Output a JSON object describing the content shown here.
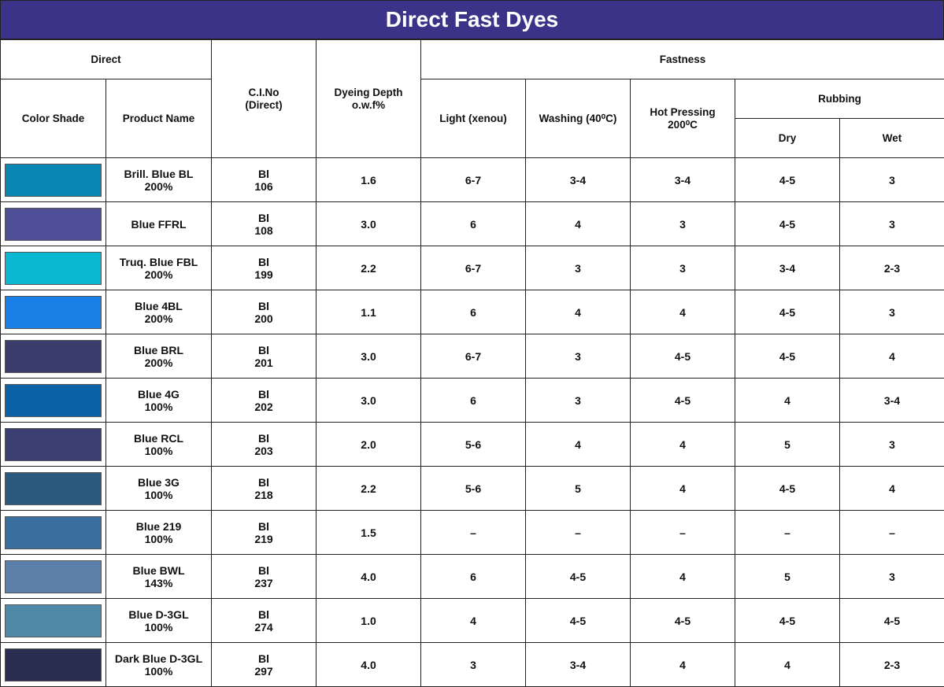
{
  "title": "Direct Fast Dyes",
  "header": {
    "direct": "Direct",
    "color_shade": "Color Shade",
    "product_name": "Product Name",
    "ci_no": "C.I.No\n(Direct)",
    "dyeing_depth": "Dyeing Depth\no.w.f%",
    "fastness": "Fastness",
    "light": "Light (xenou)",
    "washing": "Washing (40⁰C)",
    "hot_pressing": "Hot Pressing\n200⁰C",
    "rubbing": "Rubbing",
    "dry": "Dry",
    "wet": "Wet"
  },
  "rows": [
    {
      "swatch": "#0a86b3",
      "product": "Brill. Blue BL\n200%",
      "ci": "Bl\n106",
      "depth": "1.6",
      "light": "6-7",
      "washing": "3-4",
      "hot": "3-4",
      "dry": "4-5",
      "wet": "3"
    },
    {
      "swatch": "#4e4f97",
      "product": "Blue FFRL",
      "ci": "Bl\n108",
      "depth": "3.0",
      "light": "6",
      "washing": "4",
      "hot": "3",
      "dry": "4-5",
      "wet": "3"
    },
    {
      "swatch": "#0ab8d2",
      "product": "Truq. Blue FBL\n200%",
      "ci": "Bl\n199",
      "depth": "2.2",
      "light": "6-7",
      "washing": "3",
      "hot": "3",
      "dry": "3-4",
      "wet": "2-3"
    },
    {
      "swatch": "#1a7fe6",
      "product": "Blue 4BL\n200%",
      "ci": "Bl\n200",
      "depth": "1.1",
      "light": "6",
      "washing": "4",
      "hot": "4",
      "dry": "4-5",
      "wet": "3"
    },
    {
      "swatch": "#3a3c6c",
      "product": "Blue BRL\n200%",
      "ci": "Bl\n201",
      "depth": "3.0",
      "light": "6-7",
      "washing": "3",
      "hot": "4-5",
      "dry": "4-5",
      "wet": "4"
    },
    {
      "swatch": "#0b62a6",
      "product": "Blue 4G\n100%",
      "ci": "Bl\n202",
      "depth": "3.0",
      "light": "6",
      "washing": "3",
      "hot": "4-5",
      "dry": "4",
      "wet": "3-4"
    },
    {
      "swatch": "#3c3f72",
      "product": "Blue RCL\n100%",
      "ci": "Bl\n203",
      "depth": "2.0",
      "light": "5-6",
      "washing": "4",
      "hot": "4",
      "dry": "5",
      "wet": "3"
    },
    {
      "swatch": "#2b5a7e",
      "product": "Blue 3G\n100%",
      "ci": "Bl\n218",
      "depth": "2.2",
      "light": "5-6",
      "washing": "5",
      "hot": "4",
      "dry": "4-5",
      "wet": "4"
    },
    {
      "swatch": "#3a6fa0",
      "product": "Blue 219\n100%",
      "ci": "Bl\n219",
      "depth": "1.5",
      "light": "–",
      "washing": "–",
      "hot": "–",
      "dry": "–",
      "wet": "–"
    },
    {
      "swatch": "#5b7fa8",
      "product": "Blue BWL\n143%",
      "ci": "Bl\n237",
      "depth": "4.0",
      "light": "6",
      "washing": "4-5",
      "hot": "4",
      "dry": "5",
      "wet": "3"
    },
    {
      "swatch": "#4e8aa8",
      "product": "Blue D-3GL\n100%",
      "ci": "Bl\n274",
      "depth": "1.0",
      "light": "4",
      "washing": "4-5",
      "hot": "4-5",
      "dry": "4-5",
      "wet": "4-5"
    },
    {
      "swatch": "#2a2f52",
      "product": "Dark Blue D-3GL\n100%",
      "ci": "Bl\n297",
      "depth": "4.0",
      "light": "3",
      "washing": "3-4",
      "hot": "4",
      "dry": "4",
      "wet": "2-3"
    }
  ]
}
